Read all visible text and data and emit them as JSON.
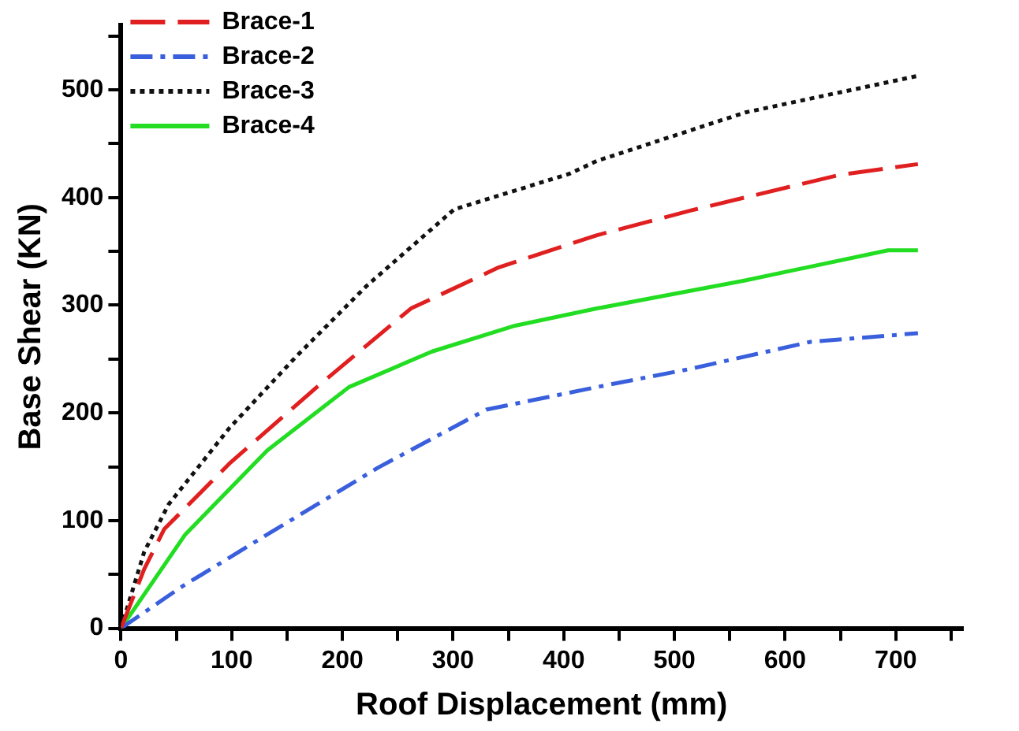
{
  "chart_data": {
    "type": "line",
    "xlabel": "Roof Displacement (mm)",
    "ylabel": "Base Shear (KN)",
    "xlim": [
      0,
      760
    ],
    "xticks": [
      0,
      {
        "value": 50,
        "label": null
      },
      100,
      {
        "value": 150,
        "label": null
      },
      200,
      {
        "value": 250,
        "label": null
      },
      300,
      {
        "value": 350,
        "label": null
      },
      400,
      {
        "value": 450,
        "label": null
      },
      500,
      {
        "value": 550,
        "label": null
      },
      600,
      {
        "value": 650,
        "label": null
      },
      700,
      {
        "value": 750,
        "label": null
      }
    ],
    "ylim": [
      0,
      560
    ],
    "yticks": [
      0,
      {
        "value": 50,
        "label": null
      },
      100,
      {
        "value": 150,
        "label": null
      },
      200,
      {
        "value": 250,
        "label": null
      },
      300,
      {
        "value": 350,
        "label": null
      },
      400,
      {
        "value": 450,
        "label": null
      },
      500,
      {
        "value": 550,
        "label": null
      }
    ],
    "grid": false,
    "legend": "top left",
    "marker": "none",
    "series": [
      {
        "name": "Brace-1",
        "color": "#e02020",
        "line_style": "dashed",
        "x": [
          0,
          21,
          39,
          98,
          177,
          262,
          341,
          430,
          515,
          649,
          720
        ],
        "values": [
          0,
          55,
          92,
          153,
          224,
          297,
          335,
          365,
          388,
          421,
          431
        ]
      },
      {
        "name": "Brace-2",
        "color": "#3a5fdc",
        "line_style": "dashdot",
        "x": [
          0,
          54,
          132,
          232,
          330,
          430,
          515,
          623,
          720
        ],
        "values": [
          0,
          38,
          87,
          149,
          203,
          224,
          241,
          266,
          274
        ]
      },
      {
        "name": "Brace-3",
        "color": "#111111",
        "line_style": "dotted",
        "x": [
          0,
          21,
          43,
          98,
          158,
          222,
          301,
          405,
          430,
          564,
          720
        ],
        "values": [
          0,
          71,
          115,
          186,
          252,
          318,
          389,
          422,
          434,
          479,
          513
        ]
      },
      {
        "name": "Brace-4",
        "color": "#22dd22",
        "line_style": "solid",
        "x": [
          0,
          58,
          132,
          206,
          281,
          356,
          430,
          564,
          693,
          720
        ],
        "values": [
          0,
          87,
          165,
          224,
          257,
          281,
          297,
          323,
          351,
          351
        ]
      }
    ]
  }
}
